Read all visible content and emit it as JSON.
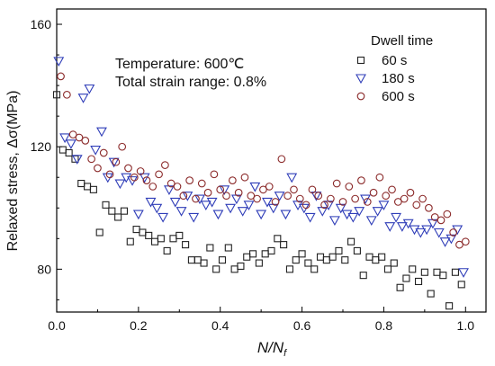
{
  "chart_data": {
    "type": "scatter",
    "title": "",
    "xlabel": "N/N",
    "xlabel_subscript": "f",
    "ylabel": "Relaxed stress, Δσ(MPa)",
    "xlim": [
      0,
      1.05
    ],
    "ylim": [
      66,
      165
    ],
    "xticks": [
      "0.0",
      "0.2",
      "0.4",
      "0.6",
      "0.8",
      "1.0"
    ],
    "yticks": [
      "80",
      "120",
      "160"
    ],
    "xtick_values": [
      0,
      0.2,
      0.4,
      0.6,
      0.8,
      1.0
    ],
    "ytick_values": [
      80,
      120,
      160
    ],
    "grid": false,
    "legend_placement": "top-right",
    "legend_title": "Dwell time",
    "annotations": [
      "Temperature: 600℃",
      "Total strain range: 0.8%"
    ],
    "series": [
      {
        "name": "60 s",
        "marker": "square",
        "color": "#222222",
        "x": [
          0.0,
          0.015,
          0.03,
          0.045,
          0.06,
          0.075,
          0.09,
          0.105,
          0.12,
          0.135,
          0.15,
          0.165,
          0.18,
          0.195,
          0.21,
          0.225,
          0.24,
          0.255,
          0.27,
          0.285,
          0.3,
          0.315,
          0.33,
          0.345,
          0.36,
          0.375,
          0.39,
          0.405,
          0.42,
          0.435,
          0.45,
          0.465,
          0.48,
          0.495,
          0.51,
          0.525,
          0.54,
          0.555,
          0.57,
          0.585,
          0.6,
          0.615,
          0.63,
          0.645,
          0.66,
          0.675,
          0.69,
          0.705,
          0.72,
          0.735,
          0.75,
          0.765,
          0.78,
          0.795,
          0.81,
          0.825,
          0.84,
          0.855,
          0.87,
          0.885,
          0.9,
          0.915,
          0.93,
          0.945,
          0.96,
          0.975,
          0.99
        ],
        "y": [
          137,
          119,
          118,
          116,
          108,
          107,
          106,
          92,
          101,
          99,
          97,
          99,
          89,
          93,
          92,
          91,
          89,
          90,
          86,
          90,
          91,
          88,
          83,
          83,
          82,
          87,
          80,
          83,
          87,
          80,
          81,
          84,
          85,
          82,
          85,
          86,
          90,
          88,
          80,
          83,
          85,
          82,
          80,
          84,
          83,
          84,
          86,
          83,
          89,
          86,
          78,
          84,
          83,
          84,
          80,
          82,
          74,
          77,
          80,
          76,
          79,
          72,
          79,
          78,
          68,
          79,
          75
        ]
      },
      {
        "name": "180 s",
        "marker": "triangle-down",
        "color": "#2f3db8",
        "x": [
          0.005,
          0.02,
          0.035,
          0.05,
          0.065,
          0.08,
          0.095,
          0.11,
          0.125,
          0.14,
          0.155,
          0.17,
          0.185,
          0.2,
          0.215,
          0.23,
          0.245,
          0.26,
          0.275,
          0.29,
          0.305,
          0.32,
          0.335,
          0.35,
          0.365,
          0.38,
          0.395,
          0.41,
          0.425,
          0.44,
          0.455,
          0.47,
          0.485,
          0.5,
          0.515,
          0.53,
          0.545,
          0.56,
          0.575,
          0.59,
          0.605,
          0.62,
          0.635,
          0.65,
          0.665,
          0.68,
          0.695,
          0.71,
          0.725,
          0.74,
          0.755,
          0.77,
          0.785,
          0.8,
          0.815,
          0.83,
          0.845,
          0.86,
          0.875,
          0.89,
          0.905,
          0.92,
          0.935,
          0.95,
          0.965,
          0.98,
          0.995
        ],
        "y": [
          148,
          123,
          121,
          116,
          136,
          139,
          119,
          125,
          110,
          115,
          108,
          110,
          109,
          98,
          110,
          102,
          100,
          97,
          106,
          102,
          99,
          104,
          97,
          103,
          101,
          102,
          98,
          106,
          100,
          103,
          99,
          101,
          107,
          98,
          102,
          100,
          104,
          98,
          110,
          101,
          100,
          97,
          104,
          99,
          101,
          96,
          100,
          98,
          97,
          99,
          103,
          96,
          99,
          101,
          94,
          97,
          94,
          95,
          93,
          92,
          93,
          95,
          92,
          89,
          90,
          93,
          79
        ]
      },
      {
        "name": "600 s",
        "marker": "circle",
        "color": "#8b2a2a",
        "x": [
          0.01,
          0.025,
          0.04,
          0.055,
          0.07,
          0.085,
          0.1,
          0.115,
          0.13,
          0.145,
          0.16,
          0.175,
          0.19,
          0.205,
          0.22,
          0.235,
          0.25,
          0.265,
          0.28,
          0.295,
          0.31,
          0.325,
          0.34,
          0.355,
          0.37,
          0.385,
          0.4,
          0.415,
          0.43,
          0.445,
          0.46,
          0.475,
          0.49,
          0.505,
          0.52,
          0.535,
          0.55,
          0.565,
          0.58,
          0.595,
          0.61,
          0.625,
          0.64,
          0.655,
          0.67,
          0.685,
          0.7,
          0.715,
          0.73,
          0.745,
          0.76,
          0.775,
          0.79,
          0.805,
          0.82,
          0.835,
          0.85,
          0.865,
          0.88,
          0.895,
          0.91,
          0.925,
          0.94,
          0.955,
          0.97,
          0.985,
          1.0
        ],
        "y": [
          143,
          137,
          124,
          123,
          122,
          116,
          113,
          118,
          111,
          115,
          120,
          113,
          110,
          112,
          109,
          107,
          111,
          114,
          108,
          107,
          104,
          109,
          103,
          108,
          105,
          111,
          106,
          104,
          109,
          105,
          110,
          104,
          103,
          106,
          107,
          102,
          116,
          104,
          106,
          103,
          101,
          106,
          104,
          101,
          103,
          108,
          102,
          107,
          103,
          109,
          102,
          105,
          110,
          104,
          106,
          102,
          103,
          105,
          101,
          103,
          100,
          97,
          96,
          98,
          92,
          88,
          89
        ]
      }
    ]
  }
}
